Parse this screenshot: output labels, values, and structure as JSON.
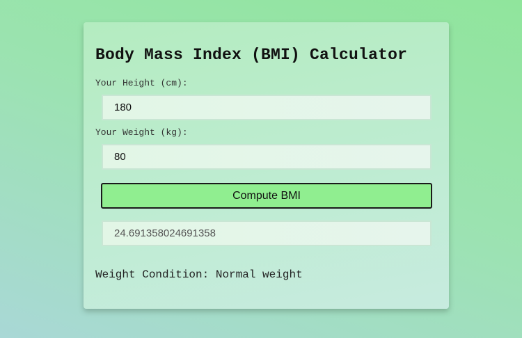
{
  "calculator": {
    "title": "Body Mass Index (BMI) Calculator",
    "height_label": "Your Height (cm):",
    "height_value": "180",
    "weight_label": "Your Weight (kg):",
    "weight_value": "80",
    "compute_label": "Compute BMI",
    "result_value": "24.691358024691358",
    "condition_prefix": "Weight Condition:",
    "condition_value": "Normal weight"
  },
  "colors": {
    "button": "#90ee90",
    "background": "#9be3b0",
    "card": "#bdecd0"
  }
}
